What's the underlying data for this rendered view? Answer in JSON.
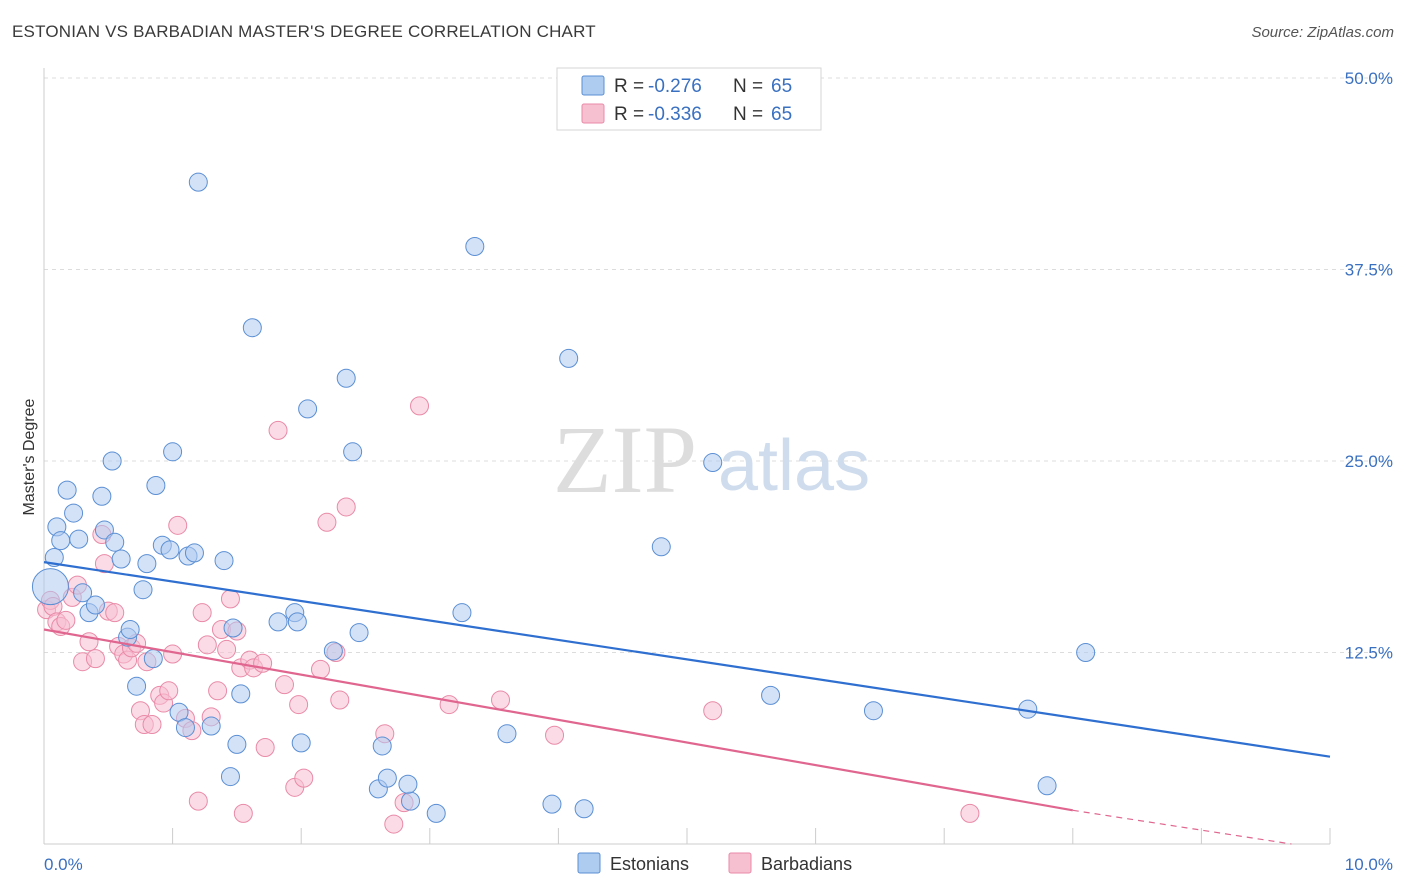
{
  "title": "ESTONIAN VS BARBADIAN MASTER'S DEGREE CORRELATION CHART",
  "source": "Source: ZipAtlas.com",
  "watermark": {
    "part1": "ZIP",
    "part2": "atlas"
  },
  "colors": {
    "blue_fill": "#aecbf0",
    "blue_stroke": "#5b8fd4",
    "blue_line": "#2f6fd0",
    "pink_fill": "#f7c0d1",
    "pink_stroke": "#e98aa8",
    "pink_line": "#e06690",
    "tick_label": "#3a70c0"
  },
  "legend": {
    "row1": {
      "r_label": "R =",
      "r_value": "-0.276",
      "n_label": "N =",
      "n_value": "65"
    },
    "row2": {
      "r_label": "R =",
      "r_value": "-0.336",
      "n_label": "N =",
      "n_value": "65"
    }
  },
  "chart_data": {
    "type": "scatter",
    "title": "ESTONIAN VS BARBADIAN MASTER'S DEGREE CORRELATION CHART",
    "xlabel": "",
    "ylabel": "Master's Degree",
    "xlim": [
      0,
      10
    ],
    "ylim": [
      0,
      50
    ],
    "x_tick_labels": [
      "0.0%",
      "10.0%"
    ],
    "y_tick_labels": [
      "12.5%",
      "25.0%",
      "37.5%",
      "50.0%"
    ],
    "y_ticks": [
      12.5,
      25.0,
      37.5,
      50.0
    ],
    "grid": true,
    "legend_position": "top-center",
    "series": [
      {
        "name": "Estonians",
        "trend": {
          "x0": 0,
          "y0": 18.4,
          "x1": 10,
          "y1": 5.7
        },
        "points": [
          [
            0.05,
            16.8
          ],
          [
            0.08,
            18.7
          ],
          [
            0.1,
            20.7
          ],
          [
            0.13,
            19.8
          ],
          [
            0.18,
            23.1
          ],
          [
            0.23,
            21.6
          ],
          [
            0.27,
            19.9
          ],
          [
            0.3,
            16.4
          ],
          [
            0.35,
            15.1
          ],
          [
            0.4,
            15.6
          ],
          [
            0.45,
            22.7
          ],
          [
            0.47,
            20.5
          ],
          [
            0.53,
            25.0
          ],
          [
            0.55,
            19.7
          ],
          [
            0.6,
            18.6
          ],
          [
            0.65,
            13.5
          ],
          [
            0.67,
            14.0
          ],
          [
            0.72,
            10.3
          ],
          [
            0.77,
            16.6
          ],
          [
            0.8,
            18.3
          ],
          [
            0.85,
            12.1
          ],
          [
            0.87,
            23.4
          ],
          [
            0.92,
            19.5
          ],
          [
            0.98,
            19.2
          ],
          [
            1.0,
            25.6
          ],
          [
            1.05,
            8.6
          ],
          [
            1.1,
            7.6
          ],
          [
            1.12,
            18.8
          ],
          [
            1.17,
            19.0
          ],
          [
            1.2,
            43.2
          ],
          [
            1.3,
            7.7
          ],
          [
            1.4,
            18.5
          ],
          [
            1.45,
            4.4
          ],
          [
            1.47,
            14.1
          ],
          [
            1.5,
            6.5
          ],
          [
            1.53,
            9.8
          ],
          [
            1.62,
            33.7
          ],
          [
            1.82,
            14.5
          ],
          [
            1.95,
            15.1
          ],
          [
            1.97,
            14.5
          ],
          [
            2.0,
            6.6
          ],
          [
            2.05,
            28.4
          ],
          [
            2.25,
            12.6
          ],
          [
            2.35,
            30.4
          ],
          [
            2.4,
            25.6
          ],
          [
            2.45,
            13.8
          ],
          [
            2.6,
            3.6
          ],
          [
            2.63,
            6.4
          ],
          [
            2.67,
            4.3
          ],
          [
            2.85,
            2.8
          ],
          [
            2.83,
            3.9
          ],
          [
            3.05,
            2.0
          ],
          [
            3.25,
            15.1
          ],
          [
            3.35,
            39.0
          ],
          [
            3.6,
            7.2
          ],
          [
            3.95,
            2.6
          ],
          [
            4.08,
            31.7
          ],
          [
            4.2,
            2.3
          ],
          [
            4.8,
            19.4
          ],
          [
            5.2,
            24.9
          ],
          [
            5.65,
            9.7
          ],
          [
            6.45,
            8.7
          ],
          [
            7.65,
            8.8
          ],
          [
            7.8,
            3.8
          ],
          [
            8.1,
            12.5
          ]
        ]
      },
      {
        "name": "Barbadians",
        "trend": {
          "x0": 0,
          "y0": 14.0,
          "x1": 8.0,
          "y1": 2.2
        },
        "trend_dashed": {
          "x0": 8.0,
          "y0": 2.2,
          "x1": 9.7,
          "y1": -0.3
        },
        "points": [
          [
            0.02,
            15.3
          ],
          [
            0.05,
            15.9
          ],
          [
            0.07,
            15.5
          ],
          [
            0.1,
            14.5
          ],
          [
            0.13,
            14.2
          ],
          [
            0.17,
            14.6
          ],
          [
            0.22,
            16.1
          ],
          [
            0.26,
            16.9
          ],
          [
            0.3,
            11.9
          ],
          [
            0.35,
            13.2
          ],
          [
            0.4,
            12.1
          ],
          [
            0.45,
            20.2
          ],
          [
            0.47,
            18.3
          ],
          [
            0.5,
            15.2
          ],
          [
            0.55,
            15.1
          ],
          [
            0.58,
            12.9
          ],
          [
            0.62,
            12.4
          ],
          [
            0.65,
            12.0
          ],
          [
            0.68,
            12.8
          ],
          [
            0.72,
            13.1
          ],
          [
            0.75,
            8.7
          ],
          [
            0.78,
            7.8
          ],
          [
            0.8,
            11.9
          ],
          [
            0.84,
            7.8
          ],
          [
            0.9,
            9.7
          ],
          [
            0.93,
            9.2
          ],
          [
            0.97,
            10.0
          ],
          [
            1.0,
            12.4
          ],
          [
            1.04,
            20.8
          ],
          [
            1.1,
            8.2
          ],
          [
            1.15,
            7.4
          ],
          [
            1.2,
            2.8
          ],
          [
            1.23,
            15.1
          ],
          [
            1.27,
            13.0
          ],
          [
            1.3,
            8.3
          ],
          [
            1.35,
            10.0
          ],
          [
            1.38,
            14.0
          ],
          [
            1.42,
            12.7
          ],
          [
            1.45,
            16.0
          ],
          [
            1.5,
            13.9
          ],
          [
            1.53,
            11.5
          ],
          [
            1.55,
            2.0
          ],
          [
            1.6,
            12.0
          ],
          [
            1.63,
            11.5
          ],
          [
            1.7,
            11.8
          ],
          [
            1.72,
            6.3
          ],
          [
            1.82,
            27.0
          ],
          [
            1.87,
            10.4
          ],
          [
            1.95,
            3.7
          ],
          [
            1.98,
            9.1
          ],
          [
            2.02,
            4.3
          ],
          [
            2.15,
            11.4
          ],
          [
            2.2,
            21.0
          ],
          [
            2.27,
            12.5
          ],
          [
            2.3,
            9.4
          ],
          [
            2.35,
            22.0
          ],
          [
            2.65,
            7.2
          ],
          [
            2.72,
            1.3
          ],
          [
            2.8,
            2.7
          ],
          [
            2.92,
            28.6
          ],
          [
            3.15,
            9.1
          ],
          [
            3.55,
            9.4
          ],
          [
            3.97,
            7.1
          ],
          [
            5.2,
            8.7
          ],
          [
            7.2,
            2.0
          ]
        ]
      }
    ]
  }
}
